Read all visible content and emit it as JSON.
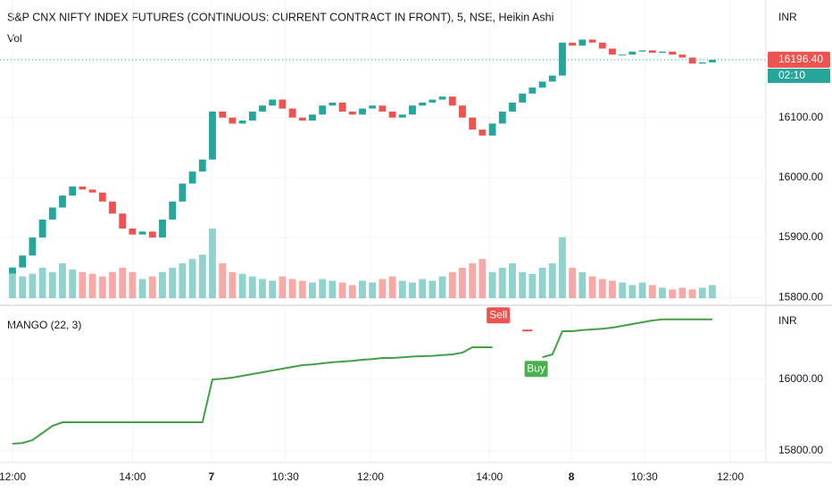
{
  "chart_data": [
    {
      "type": "candlestick",
      "title": "S&P CNX NIFTY INDEX FUTURES (CONTINUOUS: CURRENT CONTRACT IN FRONT), 5, NSE, Heikin Ashi",
      "subtitle": "Vol",
      "currency": "INR",
      "up_color": "#26a69a",
      "down_color": "#ef5350",
      "open": [
        15840,
        15850,
        15870,
        15900,
        15930,
        15950,
        15970,
        15985,
        15980,
        15975,
        15960,
        15940,
        15915,
        15905,
        15910,
        15900,
        15930,
        15960,
        15990,
        16010,
        16030,
        16110,
        16100,
        16090,
        16095,
        16110,
        16120,
        16130,
        16115,
        16100,
        16095,
        16105,
        16120,
        16125,
        16110,
        16105,
        16115,
        16120,
        16110,
        16100,
        16105,
        16120,
        16125,
        16130,
        16135,
        16120,
        16100,
        16080,
        16070,
        16090,
        16110,
        16125,
        16140,
        16150,
        16160,
        16170,
        16225,
        16220,
        16230,
        16225,
        16215,
        16205,
        16205,
        16210,
        16212,
        16208,
        16210,
        16205,
        16200,
        16190,
        16192
      ],
      "close": [
        15850,
        15870,
        15900,
        15930,
        15950,
        15970,
        15985,
        15980,
        15975,
        15960,
        15940,
        15915,
        15905,
        15910,
        15900,
        15930,
        15960,
        15990,
        16010,
        16030,
        16110,
        16100,
        16090,
        16095,
        16110,
        16120,
        16130,
        16115,
        16100,
        16095,
        16105,
        16120,
        16125,
        16110,
        16105,
        16115,
        16120,
        16110,
        16100,
        16105,
        16120,
        16125,
        16130,
        16135,
        16120,
        16100,
        16080,
        16070,
        16090,
        16110,
        16125,
        16140,
        16150,
        16160,
        16170,
        16225,
        16220,
        16230,
        16225,
        16215,
        16205,
        16205,
        16210,
        16212,
        16208,
        16210,
        16205,
        16200,
        16190,
        16192,
        16196.4
      ],
      "volume": [
        30,
        25,
        28,
        35,
        30,
        40,
        33,
        30,
        28,
        25,
        30,
        35,
        30,
        22,
        25,
        30,
        35,
        40,
        45,
        50,
        80,
        40,
        30,
        28,
        25,
        22,
        20,
        25,
        22,
        20,
        18,
        22,
        20,
        18,
        15,
        20,
        18,
        22,
        25,
        20,
        18,
        22,
        20,
        25,
        30,
        35,
        40,
        45,
        30,
        35,
        40,
        30,
        28,
        35,
        40,
        70,
        35,
        30,
        25,
        22,
        20,
        18,
        15,
        18,
        15,
        12,
        10,
        12,
        10,
        12,
        15
      ],
      "last_price": {
        "value": 16196.4,
        "label": "16196.40"
      },
      "countdown": "02:10",
      "xlim": [
        -1.25,
        75.36
      ],
      "xticks": [
        {
          "value": 0,
          "label": "12:00"
        },
        {
          "value": 12,
          "label": "14:00"
        },
        {
          "value": 19.9,
          "label": "7"
        },
        {
          "value": 27.3,
          "label": "10:30"
        },
        {
          "value": 35.8,
          "label": "12:00"
        },
        {
          "value": 47.7,
          "label": "14:00"
        },
        {
          "value": 55.9,
          "label": "8"
        },
        {
          "value": 63.2,
          "label": "10:30"
        },
        {
          "value": 71.8,
          "label": "12:00"
        }
      ],
      "ylim": [
        15787,
        16296
      ],
      "yticks": [
        {
          "value": 15800,
          "label": "15800.00"
        },
        {
          "value": 15900,
          "label": "15900.00"
        },
        {
          "value": 16000,
          "label": "16000.00"
        },
        {
          "value": 16100,
          "label": "16100.00"
        }
      ]
    },
    {
      "type": "line",
      "title": "MANGO (22, 3)",
      "currency": "INR",
      "series": [
        {
          "color": "#43a047",
          "values": [
            15820,
            15822,
            15830,
            15850,
            15870,
            15880,
            15880,
            15880,
            15880,
            15880,
            15880,
            15880,
            15880,
            15880,
            15880,
            15880,
            15880,
            15880,
            15880,
            15880,
            16000,
            16002,
            16005,
            16010,
            16015,
            16020,
            16025,
            16030,
            16035,
            16040,
            16042,
            16045,
            16048,
            16050,
            16052,
            16055,
            16057,
            16060,
            16060,
            16062,
            16064,
            16065,
            16066,
            16068,
            16070,
            16075,
            16090,
            16090,
            16090,
            null,
            null,
            null,
            null,
            16062,
            16070,
            16135,
            16135,
            16138,
            16140,
            16142,
            16145,
            16150,
            16155,
            16160,
            16165,
            16168,
            16168,
            16168,
            16168,
            16168,
            16168
          ]
        },
        {
          "color": "#ef5350",
          "values": [
            null,
            null,
            null,
            null,
            null,
            null,
            null,
            null,
            null,
            null,
            null,
            null,
            null,
            null,
            null,
            null,
            null,
            null,
            null,
            null,
            null,
            null,
            null,
            null,
            null,
            null,
            null,
            null,
            null,
            null,
            null,
            null,
            null,
            null,
            null,
            null,
            null,
            null,
            null,
            null,
            null,
            null,
            null,
            null,
            null,
            null,
            null,
            null,
            null,
            null,
            null,
            16137,
            16137,
            null,
            null,
            null,
            null,
            null,
            null,
            null,
            null,
            null,
            null,
            null,
            null,
            null,
            null,
            null,
            null,
            null,
            null
          ]
        }
      ],
      "annotations": [
        {
          "text": "Sell",
          "color": "#ef5350"
        },
        {
          "text": "Buy",
          "color": "#4caf50"
        }
      ],
      "ylim": [
        15775,
        16200
      ],
      "yticks": [
        {
          "value": 15800,
          "label": "15800.00"
        },
        {
          "value": 16000,
          "label": "16000.00"
        }
      ]
    }
  ]
}
